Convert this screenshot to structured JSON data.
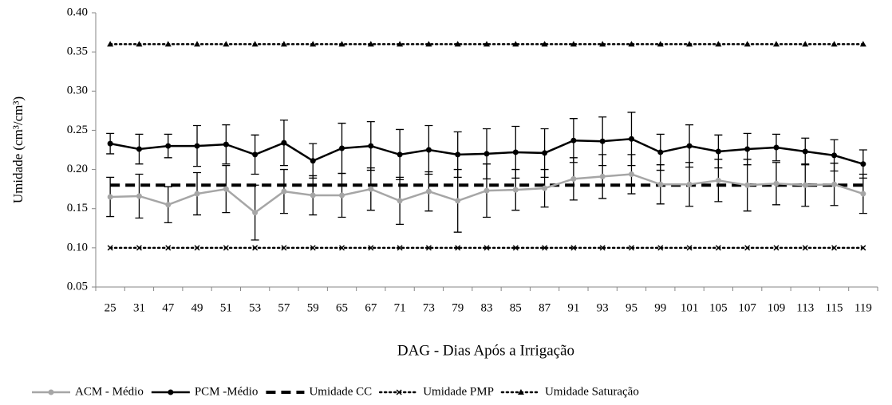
{
  "chart_data": {
    "type": "line",
    "x_label": "DAG - Dias Após a Irrigação",
    "y_label": "Umidade (cm³/cm³)",
    "categories": [
      25,
      31,
      47,
      49,
      51,
      53,
      57,
      59,
      65,
      67,
      71,
      73,
      79,
      83,
      85,
      87,
      91,
      93,
      95,
      99,
      101,
      105,
      107,
      109,
      113,
      115,
      119
    ],
    "ylim": [
      0.05,
      0.4
    ],
    "yticks": [
      0.05,
      {
        "value": 0.1,
        "label": "0.10"
      },
      0.15,
      {
        "value": 0.2,
        "label": "0.20"
      },
      0.25,
      {
        "value": 0.3,
        "label": "0.30"
      },
      0.35,
      {
        "value": 0.4,
        "label": "0.40"
      }
    ],
    "legend": "bottom",
    "series": [
      {
        "name": "ACM - Médio",
        "color": "#a6a6a6",
        "style": "solid",
        "marker": "circle",
        "values": [
          0.165,
          0.166,
          0.155,
          0.169,
          0.175,
          0.145,
          0.172,
          0.167,
          0.167,
          0.175,
          0.16,
          0.172,
          0.16,
          0.173,
          0.174,
          0.176,
          0.188,
          0.191,
          0.194,
          0.181,
          0.181,
          0.186,
          0.18,
          0.182,
          0.18,
          0.181,
          0.169
        ],
        "errors": [
          0.025,
          0.028,
          0.023,
          0.027,
          0.03,
          0.035,
          0.028,
          0.025,
          0.028,
          0.027,
          0.03,
          0.025,
          0.04,
          0.034,
          0.026,
          0.024,
          0.027,
          0.028,
          0.025,
          0.025,
          0.028,
          0.027,
          0.033,
          0.027,
          0.027,
          0.027,
          0.025
        ]
      },
      {
        "name": "PCM -Médio",
        "color": "#000000",
        "style": "solid",
        "marker": "circle",
        "values": [
          0.233,
          0.226,
          0.23,
          0.23,
          0.232,
          0.219,
          0.234,
          0.211,
          0.227,
          0.23,
          0.219,
          0.225,
          0.219,
          0.22,
          0.222,
          0.221,
          0.237,
          0.236,
          0.239,
          0.222,
          0.23,
          0.223,
          0.226,
          0.228,
          0.223,
          0.218,
          0.207
        ],
        "errors": [
          0.013,
          0.019,
          0.015,
          0.026,
          0.025,
          0.025,
          0.029,
          0.022,
          0.032,
          0.031,
          0.032,
          0.031,
          0.029,
          0.032,
          0.033,
          0.031,
          0.028,
          0.031,
          0.034,
          0.023,
          0.027,
          0.021,
          0.02,
          0.017,
          0.017,
          0.02,
          0.018
        ]
      },
      {
        "name": "Umidade CC",
        "color": "#000000",
        "style": "dash",
        "marker": "none",
        "values": [
          0.18,
          0.18,
          0.18,
          0.18,
          0.18,
          0.18,
          0.18,
          0.18,
          0.18,
          0.18,
          0.18,
          0.18,
          0.18,
          0.18,
          0.18,
          0.18,
          0.18,
          0.18,
          0.18,
          0.18,
          0.18,
          0.18,
          0.18,
          0.18,
          0.18,
          0.18,
          0.18
        ]
      },
      {
        "name": "Umidade PMP",
        "color": "#000000",
        "style": "dot",
        "marker": "x",
        "values": [
          0.1,
          0.1,
          0.1,
          0.1,
          0.1,
          0.1,
          0.1,
          0.1,
          0.1,
          0.1,
          0.1,
          0.1,
          0.1,
          0.1,
          0.1,
          0.1,
          0.1,
          0.1,
          0.1,
          0.1,
          0.1,
          0.1,
          0.1,
          0.1,
          0.1,
          0.1,
          0.1
        ]
      },
      {
        "name": "Umidade Saturação",
        "color": "#000000",
        "style": "dot",
        "marker": "triangle",
        "values": [
          0.36,
          0.36,
          0.36,
          0.36,
          0.36,
          0.36,
          0.36,
          0.36,
          0.36,
          0.36,
          0.36,
          0.36,
          0.36,
          0.36,
          0.36,
          0.36,
          0.36,
          0.36,
          0.36,
          0.36,
          0.36,
          0.36,
          0.36,
          0.36,
          0.36,
          0.36,
          0.36
        ]
      }
    ]
  }
}
